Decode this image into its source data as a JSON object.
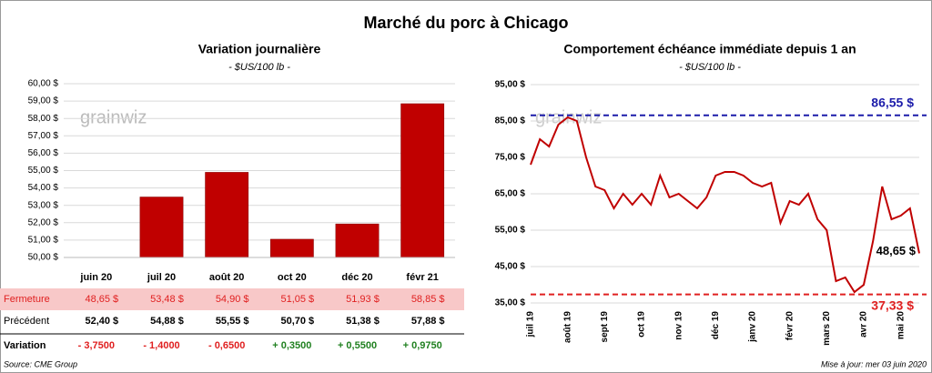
{
  "title": "Marché du porc à Chicago",
  "chart_data": [
    {
      "type": "bar",
      "title": "Variation journalière",
      "subtitle": "- $US/100 lb -",
      "categories": [
        "juin 20",
        "juil 20",
        "août 20",
        "oct 20",
        "déc 20",
        "févr 21"
      ],
      "values": [
        48.65,
        53.48,
        54.9,
        51.05,
        51.93,
        58.85
      ],
      "value_labels": [
        "48,65 $",
        "53,48 $",
        "54,90 $",
        "51,05 $",
        "51,93 $",
        "58,85 $"
      ],
      "color": "#c00000",
      "ylim": [
        50,
        60
      ],
      "yticks": [
        {
          "value": 50,
          "label": "50,00 $"
        },
        {
          "value": 51,
          "label": "51,00 $"
        },
        {
          "value": 52,
          "label": "52,00 $"
        },
        {
          "value": 53,
          "label": "53,00 $"
        },
        {
          "value": 54,
          "label": "54,00 $"
        },
        {
          "value": 55,
          "label": "55,00 $"
        },
        {
          "value": 56,
          "label": "56,00 $"
        },
        {
          "value": 57,
          "label": "57,00 $"
        },
        {
          "value": 58,
          "label": "58,00 $"
        },
        {
          "value": 59,
          "label": "59,00 $"
        },
        {
          "value": 60,
          "label": "60,00 $"
        }
      ],
      "grid": true
    },
    {
      "type": "line",
      "title": "Comportement  échéance immédiate depuis 1 an",
      "subtitle": "- $US/100 lb -",
      "categories": [
        "juil 19",
        null,
        null,
        null,
        "août 19",
        null,
        null,
        null,
        "sept 19",
        null,
        null,
        null,
        "oct 19",
        null,
        null,
        null,
        "nov 19",
        null,
        null,
        null,
        "déc 19",
        null,
        null,
        null,
        "janv 20",
        null,
        null,
        null,
        "févr 20",
        null,
        null,
        null,
        "mars 20",
        null,
        null,
        null,
        "avr 20",
        null,
        null,
        null,
        "mai 20",
        null,
        null
      ],
      "values": [
        73,
        80,
        78,
        84,
        86,
        85,
        75,
        67,
        66,
        61,
        65,
        62,
        65,
        62,
        70,
        64,
        65,
        63,
        61,
        64,
        70,
        71,
        71,
        70,
        68,
        67,
        68,
        57,
        63,
        62,
        65,
        58,
        55,
        41,
        42,
        38,
        40,
        52,
        67,
        58,
        59,
        61,
        48.65
      ],
      "color": "#c00000",
      "ylim": [
        35,
        95
      ],
      "yticks": [
        {
          "value": 35,
          "label": "35,00 $"
        },
        {
          "value": 45,
          "label": "45,00 $"
        },
        {
          "value": 55,
          "label": "55,00 $"
        },
        {
          "value": 65,
          "label": "65,00 $"
        },
        {
          "value": 75,
          "label": "75,00 $"
        },
        {
          "value": 85,
          "label": "85,00 $"
        },
        {
          "value": 95,
          "label": "95,00 $"
        }
      ],
      "grid": true,
      "reference_lines": [
        {
          "value": 86.55,
          "label": "86,55 $",
          "color": "#1c1caa"
        },
        {
          "value": 37.33,
          "label": "37,33 $",
          "color": "#e02020"
        }
      ],
      "annotations": [
        {
          "text": "48,65 $"
        }
      ]
    }
  ],
  "table": {
    "row_labels": [
      "Fermeture",
      "Précédent",
      "Variation"
    ],
    "previous": [
      "52,40 $",
      "54,88 $",
      "55,55 $",
      "50,70 $",
      "51,38 $",
      "57,88 $"
    ],
    "change": [
      "- 3,7500",
      "- 1,4000",
      "- 0,6500",
      "+ 0,3500",
      "+ 0,5500",
      "+ 0,9750"
    ]
  },
  "watermark": "grainwiz",
  "source": "Source: CME Group",
  "updated": "Mise à jour: mer 03 juin 2020"
}
